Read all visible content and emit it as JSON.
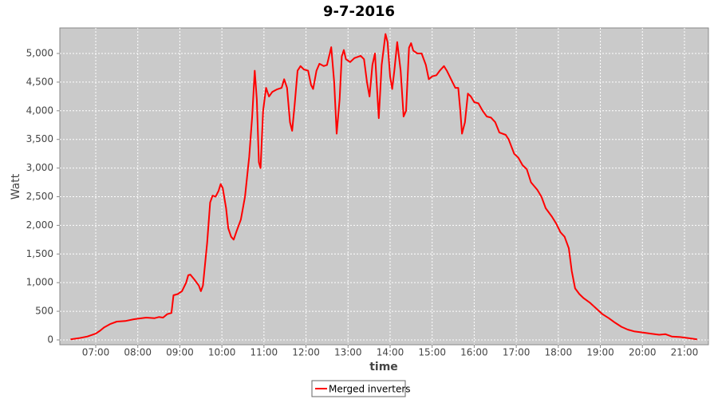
{
  "chart_data": {
    "type": "line",
    "title": "9-7-2016",
    "x_label": "time",
    "y_label": "Watt",
    "x": [
      6.4,
      6.6,
      6.8,
      7.0,
      7.1,
      7.2,
      7.35,
      7.5,
      7.7,
      7.9,
      8.0,
      8.2,
      8.4,
      8.5,
      8.6,
      8.7,
      8.8,
      8.85,
      8.95,
      9.05,
      9.15,
      9.2,
      9.25,
      9.35,
      9.45,
      9.5,
      9.55,
      9.65,
      9.72,
      9.78,
      9.85,
      9.92,
      9.97,
      10.02,
      10.1,
      10.15,
      10.22,
      10.28,
      10.35,
      10.45,
      10.55,
      10.65,
      10.72,
      10.78,
      10.83,
      10.88,
      10.92,
      10.98,
      11.05,
      11.12,
      11.2,
      11.3,
      11.42,
      11.48,
      11.55,
      11.62,
      11.67,
      11.73,
      11.8,
      11.87,
      11.95,
      12.05,
      12.12,
      12.17,
      12.25,
      12.32,
      12.42,
      12.5,
      12.6,
      12.67,
      12.73,
      12.8,
      12.85,
      12.9,
      12.95,
      13.05,
      13.15,
      13.3,
      13.38,
      13.45,
      13.51,
      13.58,
      13.64,
      13.68,
      13.73,
      13.8,
      13.89,
      13.94,
      14.0,
      14.05,
      14.1,
      14.17,
      14.25,
      14.32,
      14.38,
      14.45,
      14.5,
      14.55,
      14.65,
      14.75,
      14.85,
      14.92,
      15.0,
      15.1,
      15.18,
      15.28,
      15.35,
      15.45,
      15.55,
      15.62,
      15.67,
      15.71,
      15.78,
      15.85,
      15.92,
      16.0,
      16.1,
      16.2,
      16.3,
      16.4,
      16.5,
      16.6,
      16.75,
      16.82,
      16.95,
      17.05,
      17.15,
      17.25,
      17.35,
      17.5,
      17.6,
      17.7,
      17.85,
      17.95,
      18.05,
      18.15,
      18.25,
      18.32,
      18.4,
      18.5,
      18.6,
      18.75,
      18.9,
      19.05,
      19.2,
      19.35,
      19.5,
      19.65,
      19.8,
      20.0,
      20.2,
      20.4,
      20.55,
      20.7,
      20.9,
      21.1,
      21.3
    ],
    "series": [
      {
        "name": "Merged inverters",
        "color": "#ff0000",
        "values": [
          10,
          30,
          60,
          110,
          160,
          220,
          280,
          320,
          330,
          360,
          370,
          390,
          380,
          400,
          390,
          450,
          470,
          780,
          800,
          850,
          1000,
          1130,
          1140,
          1050,
          950,
          850,
          950,
          1700,
          2400,
          2520,
          2500,
          2600,
          2720,
          2650,
          2300,
          1950,
          1800,
          1750,
          1900,
          2100,
          2500,
          3200,
          3900,
          4700,
          4200,
          3100,
          3000,
          4000,
          4400,
          4250,
          4330,
          4370,
          4400,
          4550,
          4400,
          3800,
          3650,
          4100,
          4700,
          4780,
          4720,
          4700,
          4450,
          4380,
          4700,
          4820,
          4780,
          4800,
          5110,
          4500,
          3600,
          4200,
          4950,
          5060,
          4900,
          4850,
          4920,
          4960,
          4900,
          4500,
          4250,
          4800,
          5000,
          4500,
          3870,
          4800,
          5340,
          5200,
          4600,
          4380,
          4700,
          5200,
          4700,
          3900,
          4000,
          5100,
          5180,
          5050,
          5000,
          5000,
          4800,
          4550,
          4600,
          4620,
          4700,
          4780,
          4700,
          4550,
          4400,
          4400,
          4000,
          3600,
          3800,
          4300,
          4250,
          4150,
          4130,
          4000,
          3900,
          3880,
          3800,
          3620,
          3580,
          3500,
          3250,
          3180,
          3050,
          2980,
          2750,
          2620,
          2500,
          2300,
          2150,
          2030,
          1880,
          1800,
          1600,
          1200,
          900,
          800,
          730,
          650,
          550,
          450,
          380,
          300,
          230,
          180,
          150,
          130,
          110,
          90,
          100,
          60,
          50,
          30,
          10
        ]
      }
    ],
    "xlim": [
      6.146,
      21.57
    ],
    "ylim": [
      -84,
      5446
    ],
    "xticks": [
      {
        "value": 7,
        "label": "07:00"
      },
      {
        "value": 8,
        "label": "08:00"
      },
      {
        "value": 9,
        "label": "09:00"
      },
      {
        "value": 10,
        "label": "10:00"
      },
      {
        "value": 11,
        "label": "11:00"
      },
      {
        "value": 12,
        "label": "12:00"
      },
      {
        "value": 13,
        "label": "13:00"
      },
      {
        "value": 14,
        "label": "14:00"
      },
      {
        "value": 15,
        "label": "15:00"
      },
      {
        "value": 16,
        "label": "16:00"
      },
      {
        "value": 17,
        "label": "17:00"
      },
      {
        "value": 18,
        "label": "18:00"
      },
      {
        "value": 19,
        "label": "19:00"
      },
      {
        "value": 20,
        "label": "20:00"
      },
      {
        "value": 21,
        "label": "21:00"
      }
    ],
    "yticks": [
      0,
      500,
      {
        "value": 1000,
        "label": "1,000"
      },
      {
        "value": 1500,
        "label": "1,500"
      },
      {
        "value": 2000,
        "label": "2,000"
      },
      {
        "value": 2500,
        "label": "2,500"
      },
      {
        "value": 3000,
        "label": "3,000"
      },
      {
        "value": 3500,
        "label": "3,500"
      },
      {
        "value": 4000,
        "label": "4,000"
      },
      {
        "value": 4500,
        "label": "4,500"
      },
      {
        "value": 5000,
        "label": "5,000"
      }
    ],
    "grid": true,
    "legend": "bottom"
  }
}
